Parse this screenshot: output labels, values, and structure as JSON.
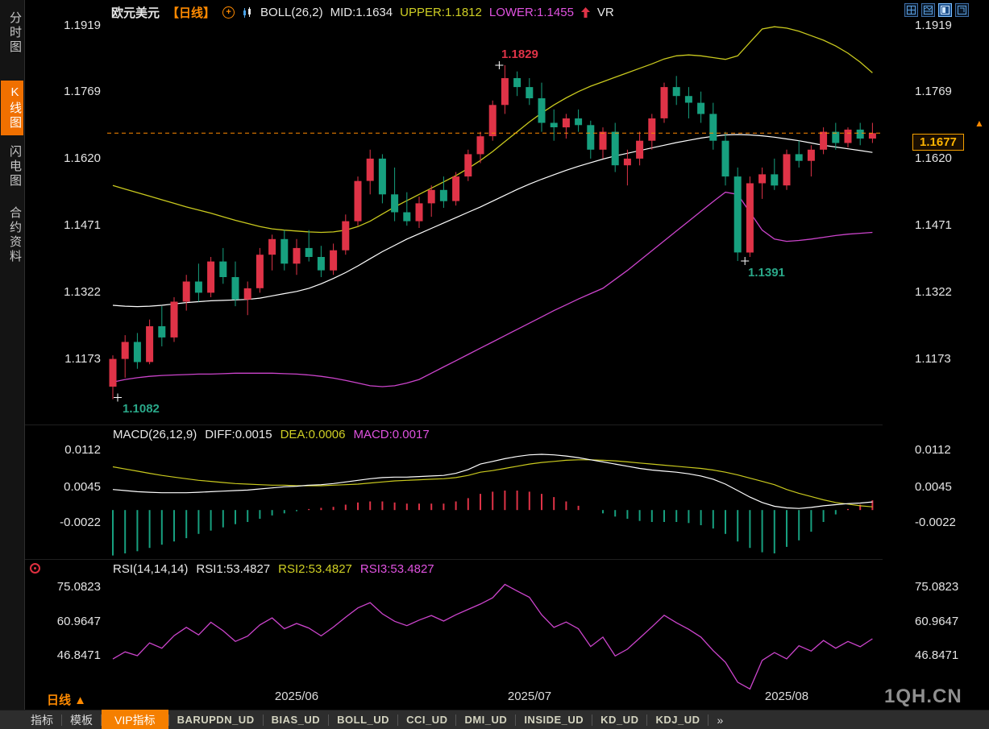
{
  "header": {
    "symbol": "欧元美元",
    "period": "【日线】",
    "boll": "BOLL(26,2)",
    "mid": "MID:1.1634",
    "upper": "UPPER:1.1812",
    "lower": "LOWER:1.1455",
    "vr": "VR"
  },
  "sidebar": {
    "items": [
      {
        "label": "分时图",
        "active": false
      },
      {
        "label": "K线图",
        "active": true
      },
      {
        "label": "闪电图",
        "active": false
      },
      {
        "label": "合约资料",
        "active": false
      }
    ]
  },
  "macd": {
    "title": "MACD(26,12,9)",
    "diff": "DIFF:0.0015",
    "dea": "DEA:0.0006",
    "macd": "MACD:0.0017"
  },
  "rsi": {
    "title": "RSI(14,14,14)",
    "rsi1": "RSI1:53.4827",
    "rsi2": "RSI2:53.4827",
    "rsi3": "RSI3:53.4827"
  },
  "annotations": {
    "high_label": "1.1829",
    "low_label": "1.1391",
    "first_low_label": "1.1082",
    "price_tag": "1.1677",
    "price_arrow": "▲"
  },
  "xaxis": {
    "period": "日线 ▲"
  },
  "watermark": "1QH.CN",
  "tabbar": {
    "tabs": [
      {
        "label": "指标",
        "active": false
      },
      {
        "label": "模板",
        "active": false
      },
      {
        "label": "VIP指标",
        "active": true
      },
      {
        "label": "BARUPDN_UD",
        "active": false
      },
      {
        "label": "BIAS_UD",
        "active": false
      },
      {
        "label": "BOLL_UD",
        "active": false
      },
      {
        "label": "CCI_UD",
        "active": false
      },
      {
        "label": "DMI_UD",
        "active": false
      },
      {
        "label": "INSIDE_UD",
        "active": false
      },
      {
        "label": "KD_UD",
        "active": false
      },
      {
        "label": "KDJ_UD",
        "active": false
      },
      {
        "label": "»",
        "active": false
      }
    ]
  },
  "colors": {
    "background": "#000000",
    "up": "#df3347",
    "down": "#17a07f",
    "boll_mid": "#ffffff",
    "boll_upper": "#c9c91e",
    "boll_lower": "#cc44cc",
    "macd_diff": "#ffffff",
    "macd_dea": "#c9c91e",
    "rsi_line": "#cc44cc",
    "last_price_line": "#ff8a00",
    "accent_orange": "#ff8a00",
    "tab_active_bg": "#f57f00"
  },
  "chart_data": {
    "type": "candlestick",
    "title": "欧元美元 日线 EUR/USD Daily with BOLL(26,2), MACD(26,12,9), RSI(14,14,14)",
    "x_ticks": [
      {
        "index": 15,
        "label": "2025/06"
      },
      {
        "index": 34,
        "label": "2025/07"
      },
      {
        "index": 55,
        "label": "2025/08"
      }
    ],
    "main_panel": {
      "yticks": [
        "1.1919",
        "1.1769",
        "1.1620",
        "1.1471",
        "1.1322",
        "1.1173"
      ],
      "ylim": [
        1.104,
        1.1935
      ],
      "last_price": 1.1677,
      "marked_points": {
        "high": {
          "index": 32,
          "price": 1.1829
        },
        "low": {
          "index": 51,
          "price": 1.1391
        },
        "first_low": {
          "index": 0,
          "price": 1.1082
        }
      },
      "open": [
        1.111,
        1.1172,
        1.121,
        1.1165,
        1.1245,
        1.122,
        1.13,
        1.1345,
        1.132,
        1.139,
        1.1355,
        1.1305,
        1.133,
        1.1405,
        1.144,
        1.1385,
        1.142,
        1.14,
        1.137,
        1.1415,
        1.148,
        1.157,
        1.162,
        1.154,
        1.15,
        1.148,
        1.152,
        1.155,
        1.1525,
        1.158,
        1.163,
        1.167,
        1.174,
        1.18,
        1.178,
        1.1755,
        1.17,
        1.169,
        1.171,
        1.1695,
        1.164,
        1.168,
        1.1605,
        1.162,
        1.166,
        1.171,
        1.178,
        1.176,
        1.1745,
        1.172,
        1.166,
        1.158,
        1.141,
        1.1565,
        1.1585,
        1.156,
        1.163,
        1.1615,
        1.164,
        1.168,
        1.1655,
        1.1685,
        1.1665
      ],
      "close": [
        1.1172,
        1.121,
        1.1165,
        1.1245,
        1.122,
        1.13,
        1.1345,
        1.132,
        1.139,
        1.1355,
        1.1305,
        1.133,
        1.1405,
        1.144,
        1.1385,
        1.142,
        1.14,
        1.137,
        1.1415,
        1.148,
        1.157,
        1.162,
        1.154,
        1.15,
        1.148,
        1.152,
        1.155,
        1.1525,
        1.158,
        1.163,
        1.167,
        1.174,
        1.18,
        1.178,
        1.1755,
        1.17,
        1.169,
        1.171,
        1.1695,
        1.164,
        1.168,
        1.1605,
        1.162,
        1.166,
        1.171,
        1.178,
        1.176,
        1.1745,
        1.172,
        1.166,
        1.158,
        1.141,
        1.1565,
        1.1585,
        1.156,
        1.163,
        1.1615,
        1.164,
        1.168,
        1.1655,
        1.1685,
        1.1665,
        1.1677
      ],
      "high": [
        1.118,
        1.1225,
        1.123,
        1.126,
        1.129,
        1.131,
        1.136,
        1.1385,
        1.14,
        1.142,
        1.139,
        1.1345,
        1.142,
        1.145,
        1.146,
        1.144,
        1.146,
        1.1425,
        1.143,
        1.1495,
        1.158,
        1.164,
        1.163,
        1.16,
        1.1545,
        1.1535,
        1.156,
        1.158,
        1.159,
        1.164,
        1.168,
        1.175,
        1.1829,
        1.1815,
        1.18,
        1.179,
        1.173,
        1.172,
        1.173,
        1.1705,
        1.169,
        1.17,
        1.164,
        1.168,
        1.172,
        1.179,
        1.1805,
        1.178,
        1.177,
        1.1745,
        1.168,
        1.16,
        1.158,
        1.16,
        1.162,
        1.164,
        1.166,
        1.165,
        1.169,
        1.17,
        1.169,
        1.17,
        1.17
      ],
      "low": [
        1.1082,
        1.113,
        1.115,
        1.116,
        1.12,
        1.121,
        1.128,
        1.13,
        1.131,
        1.134,
        1.129,
        1.127,
        1.132,
        1.137,
        1.137,
        1.136,
        1.139,
        1.1355,
        1.136,
        1.1405,
        1.147,
        1.154,
        1.152,
        1.148,
        1.147,
        1.1465,
        1.149,
        1.151,
        1.1515,
        1.157,
        1.161,
        1.166,
        1.172,
        1.176,
        1.174,
        1.168,
        1.166,
        1.1665,
        1.168,
        1.162,
        1.162,
        1.159,
        1.156,
        1.1605,
        1.164,
        1.17,
        1.174,
        1.171,
        1.17,
        1.164,
        1.156,
        1.1391,
        1.14,
        1.153,
        1.155,
        1.155,
        1.16,
        1.158,
        1.163,
        1.164,
        1.1645,
        1.165,
        1.1655
      ],
      "boll_mid": [
        1.1292,
        1.129,
        1.1289,
        1.129,
        1.1292,
        1.1295,
        1.1298,
        1.13,
        1.1302,
        1.1303,
        1.1304,
        1.1305,
        1.1308,
        1.1313,
        1.1318,
        1.1323,
        1.133,
        1.134,
        1.1352,
        1.1365,
        1.138,
        1.1396,
        1.1412,
        1.1426,
        1.144,
        1.1452,
        1.1464,
        1.1476,
        1.1488,
        1.15,
        1.1512,
        1.1525,
        1.1538,
        1.1551,
        1.1563,
        1.1574,
        1.1584,
        1.1594,
        1.1603,
        1.1611,
        1.1619,
        1.1626,
        1.1632,
        1.1638,
        1.1644,
        1.165,
        1.1656,
        1.1661,
        1.1666,
        1.167,
        1.1673,
        1.1674,
        1.1673,
        1.1671,
        1.1668,
        1.1664,
        1.166,
        1.1655,
        1.165,
        1.1646,
        1.1642,
        1.1638,
        1.1634
      ],
      "boll_upper": [
        1.156,
        1.1552,
        1.1544,
        1.1536,
        1.1528,
        1.152,
        1.1512,
        1.1505,
        1.1498,
        1.149,
        1.1482,
        1.1475,
        1.1468,
        1.1463,
        1.146,
        1.1458,
        1.1456,
        1.1455,
        1.1456,
        1.146,
        1.1468,
        1.148,
        1.1496,
        1.1512,
        1.1526,
        1.154,
        1.1554,
        1.1568,
        1.1582,
        1.1598,
        1.1616,
        1.1636,
        1.1658,
        1.168,
        1.1702,
        1.1722,
        1.174,
        1.1756,
        1.177,
        1.1782,
        1.1792,
        1.1802,
        1.1812,
        1.1822,
        1.1832,
        1.1843,
        1.185,
        1.1852,
        1.185,
        1.1846,
        1.1842,
        1.185,
        1.188,
        1.191,
        1.1915,
        1.1912,
        1.1905,
        1.1895,
        1.1885,
        1.1872,
        1.1856,
        1.1836,
        1.1812
      ],
      "boll_lower": [
        1.112,
        1.1126,
        1.113,
        1.1133,
        1.1135,
        1.1136,
        1.1137,
        1.1138,
        1.1138,
        1.1139,
        1.114,
        1.114,
        1.114,
        1.114,
        1.1139,
        1.1138,
        1.1136,
        1.1133,
        1.1129,
        1.1124,
        1.1118,
        1.1112,
        1.111,
        1.1112,
        1.1118,
        1.1126,
        1.114,
        1.1154,
        1.1168,
        1.1182,
        1.1196,
        1.121,
        1.1224,
        1.1238,
        1.1252,
        1.1266,
        1.128,
        1.1293,
        1.1306,
        1.1318,
        1.133,
        1.135,
        1.137,
        1.1392,
        1.1414,
        1.1436,
        1.1458,
        1.148,
        1.1502,
        1.1524,
        1.1545,
        1.154,
        1.15,
        1.146,
        1.144,
        1.1435,
        1.1437,
        1.144,
        1.1444,
        1.1448,
        1.1451,
        1.1453,
        1.1455
      ]
    },
    "macd_panel": {
      "yticks": [
        "0.0112",
        "0.0045",
        "-0.0022"
      ],
      "note": "histogram = 2*(DIFF-DEA); red when >=0, green when <0",
      "diff": [
        0.0038,
        0.0036,
        0.0034,
        0.0033,
        0.0032,
        0.0032,
        0.0032,
        0.0033,
        0.0034,
        0.0035,
        0.0036,
        0.0037,
        0.0039,
        0.0041,
        0.0043,
        0.0044,
        0.0046,
        0.0047,
        0.0049,
        0.0052,
        0.0055,
        0.0058,
        0.006,
        0.0061,
        0.0061,
        0.0062,
        0.0063,
        0.0064,
        0.0068,
        0.0075,
        0.0085,
        0.009,
        0.0095,
        0.0099,
        0.0102,
        0.0103,
        0.0102,
        0.01,
        0.0097,
        0.0093,
        0.0089,
        0.0085,
        0.0081,
        0.0077,
        0.0074,
        0.0072,
        0.007,
        0.0067,
        0.0063,
        0.0057,
        0.0048,
        0.0036,
        0.0024,
        0.0014,
        0.0007,
        0.0004,
        0.0003,
        0.0005,
        0.0008,
        0.001,
        0.0012,
        0.0013,
        0.0015
      ],
      "dea": [
        0.008,
        0.0076,
        0.0072,
        0.0068,
        0.0064,
        0.0061,
        0.0058,
        0.0055,
        0.0053,
        0.0051,
        0.0049,
        0.0048,
        0.0047,
        0.0046,
        0.0046,
        0.0045,
        0.0045,
        0.0045,
        0.0046,
        0.0047,
        0.0048,
        0.005,
        0.0052,
        0.0054,
        0.0055,
        0.0056,
        0.0057,
        0.0058,
        0.006,
        0.0064,
        0.007,
        0.0073,
        0.0077,
        0.0081,
        0.0085,
        0.0088,
        0.009,
        0.0092,
        0.0093,
        0.0093,
        0.0092,
        0.0091,
        0.0089,
        0.0087,
        0.0085,
        0.0083,
        0.0081,
        0.0079,
        0.0077,
        0.0074,
        0.007,
        0.0065,
        0.0059,
        0.0053,
        0.0047,
        0.0038,
        0.0031,
        0.0025,
        0.0019,
        0.0014,
        0.0011,
        0.0008,
        0.0006
      ]
    },
    "rsi_panel": {
      "yticks": [
        "75.0823",
        "60.9647",
        "46.8471"
      ],
      "rsi": [
        45.2,
        48.1,
        46.5,
        51.8,
        49.6,
        54.8,
        58.2,
        55.1,
        60.3,
        56.8,
        52.4,
        54.6,
        59.2,
        62.1,
        57.6,
        59.8,
        57.9,
        54.7,
        58.3,
        62.4,
        66.2,
        68.4,
        63.8,
        60.7,
        58.9,
        61.2,
        63.1,
        60.8,
        63.4,
        65.6,
        67.8,
        70.4,
        75.9,
        73.2,
        70.6,
        63.4,
        58.2,
        60.4,
        57.6,
        50.3,
        54.2,
        46.4,
        49.2,
        53.8,
        58.4,
        63.2,
        60.1,
        57.4,
        54.2,
        48.6,
        43.8,
        35.6,
        32.8,
        44.6,
        47.8,
        45.2,
        50.6,
        48.4,
        52.8,
        49.6,
        52.4,
        50.2,
        53.4827
      ]
    }
  }
}
